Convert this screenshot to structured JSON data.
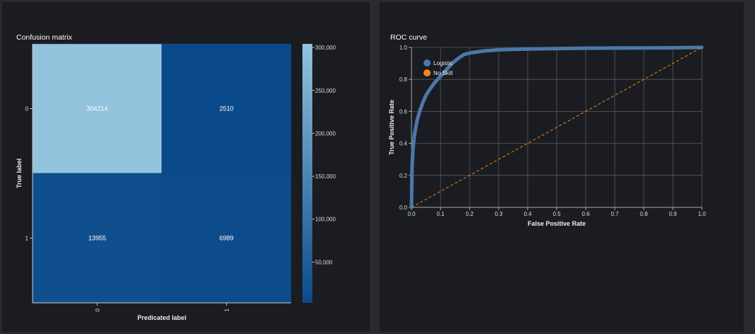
{
  "chart_data": [
    {
      "type": "heatmap",
      "title": "Confusion matrix",
      "xlabel": "Predicated label",
      "ylabel": "True label",
      "x_categories": [
        "0",
        "1"
      ],
      "y_categories": [
        "0",
        "1"
      ],
      "cells": [
        {
          "row": 0,
          "col": 0,
          "value": 304214,
          "label": "304214"
        },
        {
          "row": 0,
          "col": 1,
          "value": 2510,
          "label": "2510"
        },
        {
          "row": 1,
          "col": 0,
          "value": 13955,
          "label": "13955"
        },
        {
          "row": 1,
          "col": 1,
          "value": 6989,
          "label": "6989"
        }
      ],
      "colorbar": {
        "min": 2510,
        "max": 304214,
        "ticks": [
          300000,
          250000,
          200000,
          150000,
          100000,
          50000
        ],
        "tick_labels": [
          "300,000",
          "250,000",
          "200,000",
          "150,000",
          "100,000",
          "50,000"
        ],
        "color_low": "#0b4a8a",
        "color_high": "#92c4de"
      }
    },
    {
      "type": "line",
      "title": "ROC curve",
      "xlabel": "False Positive Rate",
      "ylabel": "True Positive Rate",
      "xlim": [
        0,
        1
      ],
      "ylim": [
        0,
        1
      ],
      "x_ticks": [
        "0.0",
        "0.1",
        "0.2",
        "0.3",
        "0.4",
        "0.5",
        "0.6",
        "0.7",
        "0.8",
        "0.9",
        "1.0"
      ],
      "y_ticks": [
        "0.0",
        "0.2",
        "0.4",
        "0.6",
        "0.8",
        "1.0"
      ],
      "grid": true,
      "legend_position": "top-left",
      "series": [
        {
          "name": "Logistic",
          "color": "#4c78a8",
          "style": "solid",
          "x": [
            0,
            0.002,
            0.005,
            0.01,
            0.015,
            0.02,
            0.03,
            0.04,
            0.05,
            0.06,
            0.08,
            0.1,
            0.12,
            0.14,
            0.16,
            0.18,
            0.2,
            0.25,
            0.3,
            0.4,
            0.5,
            0.6,
            0.7,
            0.8,
            0.9,
            1.0
          ],
          "y": [
            0,
            0.25,
            0.36,
            0.45,
            0.5,
            0.55,
            0.61,
            0.66,
            0.7,
            0.73,
            0.78,
            0.82,
            0.86,
            0.9,
            0.93,
            0.955,
            0.965,
            0.978,
            0.985,
            0.99,
            0.993,
            0.995,
            0.996,
            0.997,
            0.998,
            1.0
          ]
        },
        {
          "name": "No Skill",
          "color": "#f58518",
          "style": "dashed",
          "x": [
            0,
            1
          ],
          "y": [
            0,
            1
          ]
        }
      ]
    }
  ]
}
